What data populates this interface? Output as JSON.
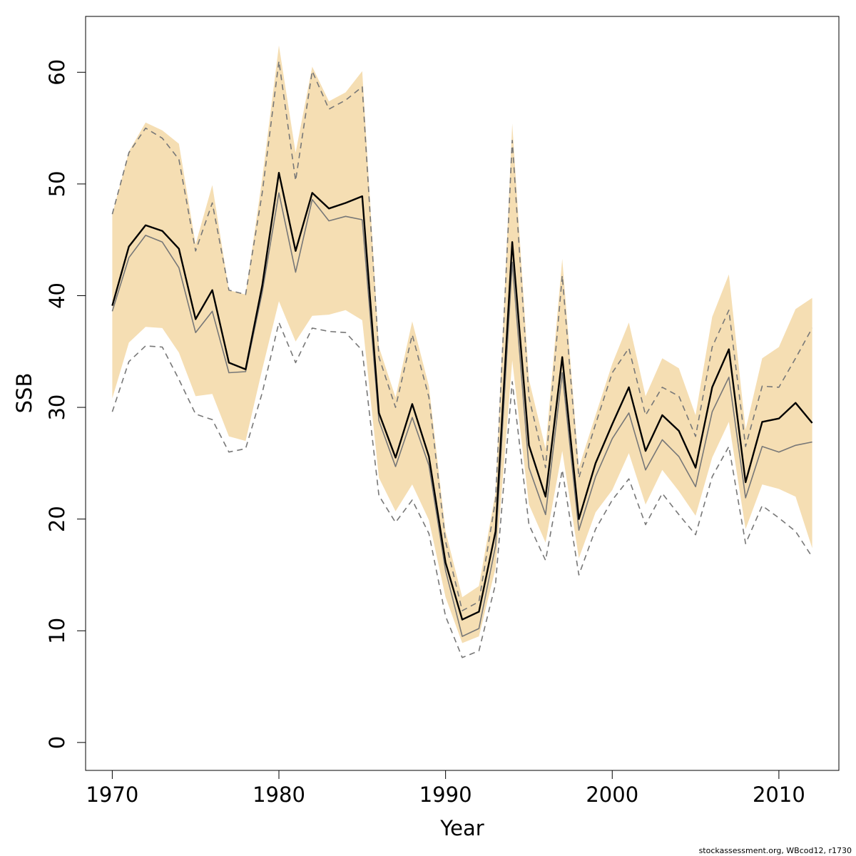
{
  "chart_data": {
    "type": "line",
    "xlabel": "Year",
    "ylabel": "SSB",
    "xlim": [
      1968.4,
      2013.6
    ],
    "ylim": [
      -2.5,
      65
    ],
    "x_ticks": [
      1970,
      1980,
      1990,
      2000,
      2010
    ],
    "y_ticks": [
      0,
      10,
      20,
      30,
      40,
      50,
      60
    ],
    "credit": "stockassessment.org, WBcod12, r1730",
    "band_color": "#f5deb3",
    "years": [
      1970,
      1971,
      1972,
      1973,
      1974,
      1975,
      1976,
      1977,
      1978,
      1979,
      1980,
      1981,
      1982,
      1983,
      1984,
      1985,
      1986,
      1987,
      1988,
      1989,
      1990,
      1991,
      1992,
      1993,
      1994,
      1995,
      1996,
      1997,
      1998,
      1999,
      2000,
      2001,
      2002,
      2003,
      2004,
      2005,
      2006,
      2007,
      2008,
      2009,
      2010,
      2011,
      2012
    ],
    "confidence_band": {
      "upper": [
        47.3,
        52.9,
        55.5,
        54.8,
        53.6,
        44.6,
        49.9,
        40.5,
        40.1,
        50.5,
        62.4,
        52.8,
        60.5,
        57.4,
        58.2,
        60.1,
        35.4,
        30.9,
        37.7,
        31.9,
        18.9,
        13.0,
        14.0,
        22.4,
        55.4,
        32.5,
        26.3,
        43.3,
        24.6,
        29.3,
        33.9,
        37.6,
        31.0,
        34.4,
        33.5,
        29.3,
        38.1,
        41.9,
        28.0,
        34.4,
        35.4,
        38.8,
        39.8
      ],
      "lower": [
        30.8,
        35.8,
        37.2,
        37.1,
        34.9,
        31.0,
        31.2,
        27.4,
        27.0,
        33.4,
        39.5,
        35.9,
        38.2,
        38.3,
        38.7,
        37.8,
        23.7,
        20.7,
        23.1,
        19.9,
        13.0,
        8.9,
        9.5,
        15.6,
        34.2,
        21.3,
        17.9,
        26.1,
        16.5,
        20.6,
        22.6,
        25.9,
        21.3,
        24.4,
        22.5,
        20.3,
        25.5,
        28.7,
        19.1,
        23.1,
        22.7,
        22.0,
        17.4
      ]
    },
    "series": [
      {
        "style": "solid-black-bold",
        "values": [
          39.1,
          44.4,
          46.3,
          45.8,
          44.2,
          37.9,
          40.5,
          34.0,
          33.4,
          40.9,
          51.0,
          44.0,
          49.2,
          47.8,
          48.3,
          48.9,
          29.5,
          25.5,
          30.3,
          25.6,
          16.1,
          11.0,
          11.7,
          18.9,
          44.8,
          26.6,
          22.0,
          34.5,
          20.0,
          25.0,
          28.5,
          31.8,
          26.1,
          29.3,
          27.9,
          24.6,
          31.8,
          35.2,
          23.3,
          28.7,
          29.0,
          30.4,
          28.6
        ]
      },
      {
        "style": "solid-gray-thin",
        "values": [
          38.6,
          43.4,
          45.4,
          44.8,
          42.5,
          36.7,
          38.6,
          33.1,
          33.2,
          40.3,
          49.2,
          42.1,
          48.6,
          46.7,
          47.1,
          46.8,
          28.8,
          24.7,
          29.1,
          24.8,
          15.4,
          9.5,
          10.2,
          17.6,
          43.0,
          24.6,
          20.4,
          33.1,
          19.0,
          23.8,
          27.2,
          29.5,
          24.4,
          27.1,
          25.6,
          22.9,
          29.6,
          32.7,
          21.9,
          26.5,
          26.0,
          26.6,
          26.9
        ]
      },
      {
        "style": "dashed-gray-upper",
        "values": [
          47.3,
          52.8,
          55.0,
          54.1,
          52.2,
          44.0,
          48.3,
          40.5,
          40.1,
          49.2,
          61.0,
          50.3,
          60.1,
          56.7,
          57.5,
          58.7,
          34.5,
          30.0,
          36.5,
          30.9,
          18.0,
          11.8,
          12.6,
          21.7,
          53.9,
          30.9,
          24.6,
          41.8,
          23.7,
          28.5,
          33.1,
          35.3,
          29.3,
          31.8,
          31.0,
          27.4,
          35.4,
          38.7,
          26.5,
          31.9,
          31.8,
          34.4,
          37.1
        ]
      },
      {
        "style": "dashed-gray-lower",
        "values": [
          29.6,
          34.1,
          35.5,
          35.4,
          32.5,
          29.4,
          28.9,
          26.0,
          26.3,
          31.3,
          37.6,
          34.0,
          37.1,
          36.8,
          36.7,
          35.1,
          22.1,
          19.7,
          21.7,
          18.7,
          11.3,
          7.6,
          8.2,
          14.2,
          32.3,
          19.5,
          16.3,
          24.4,
          15.0,
          19.1,
          21.7,
          23.6,
          19.5,
          22.3,
          20.4,
          18.6,
          23.8,
          26.5,
          17.8,
          21.2,
          20.1,
          18.9,
          16.6
        ]
      }
    ]
  }
}
